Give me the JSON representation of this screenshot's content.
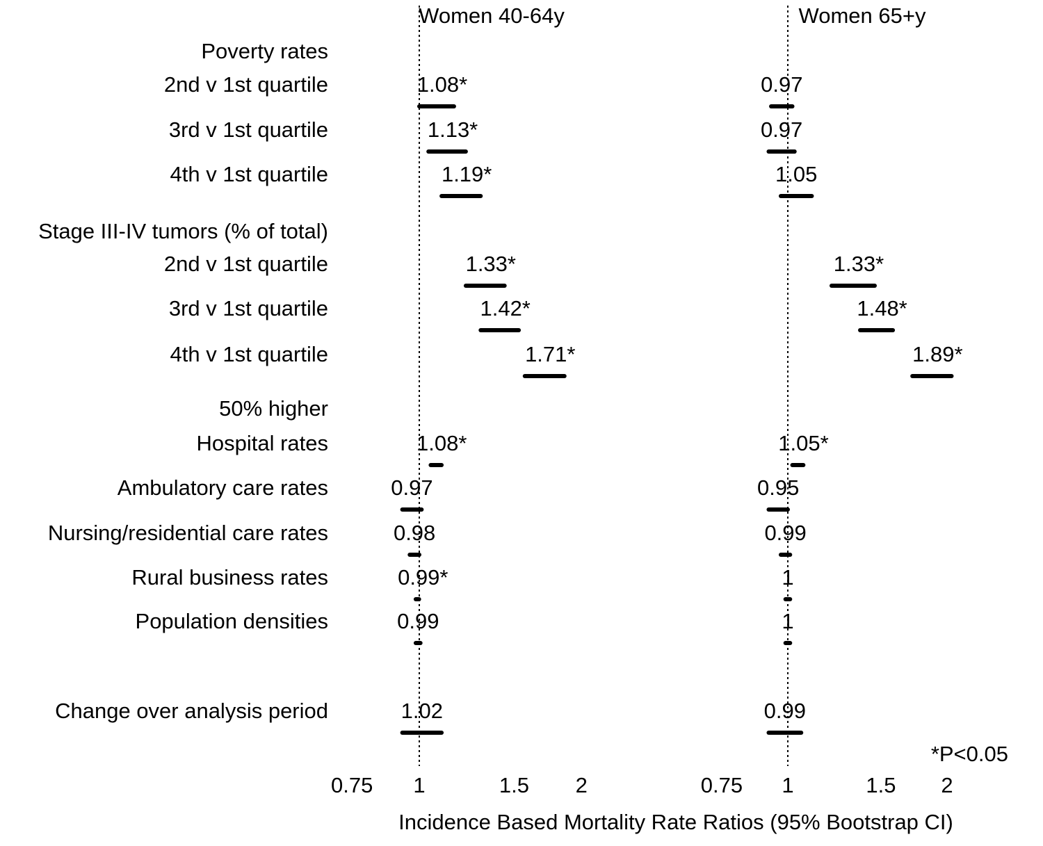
{
  "chart_data": {
    "type": "forest",
    "xlabel": "Incidence Based Mortality Rate Ratios (95% Bootstrap CI)",
    "footnote": "*P<0.05",
    "x_scale": "log",
    "xlim": [
      0.75,
      2
    ],
    "x_ticks": [
      0.75,
      1,
      1.5,
      2
    ],
    "x_tick_labels": [
      "0.75",
      "1",
      "1.5",
      "2"
    ],
    "reference_line": 1,
    "panels": [
      {
        "title": "Women 40-64y"
      },
      {
        "title": "Women 65+y"
      }
    ],
    "groups": [
      {
        "header": "Poverty rates",
        "rows": [
          {
            "label": "2nd v 1st quartile",
            "values": [
              {
                "estimate": 1.08,
                "label": "1.08*",
                "ci": [
                  1.0,
                  1.16
                ]
              },
              {
                "estimate": 0.97,
                "label": "0.97",
                "ci": [
                  0.93,
                  1.02
                ]
              }
            ]
          },
          {
            "label": "3rd v 1st quartile",
            "values": [
              {
                "estimate": 1.13,
                "label": "1.13*",
                "ci": [
                  1.04,
                  1.22
                ]
              },
              {
                "estimate": 0.97,
                "label": "0.97",
                "ci": [
                  0.92,
                  1.03
                ]
              }
            ]
          },
          {
            "label": "4th v 1st quartile",
            "values": [
              {
                "estimate": 1.19,
                "label": "1.19*",
                "ci": [
                  1.1,
                  1.3
                ]
              },
              {
                "estimate": 1.05,
                "label": "1.05",
                "ci": [
                  0.97,
                  1.11
                ]
              }
            ]
          }
        ]
      },
      {
        "header": "Stage III-IV tumors (% of total)",
        "rows": [
          {
            "label": "2nd v 1st quartile",
            "values": [
              {
                "estimate": 1.33,
                "label": "1.33*",
                "ci": [
                  1.22,
                  1.44
                ]
              },
              {
                "estimate": 1.33,
                "label": "1.33*",
                "ci": [
                  1.21,
                  1.46
                ]
              }
            ]
          },
          {
            "label": "3rd v 1st quartile",
            "values": [
              {
                "estimate": 1.42,
                "label": "1.42*",
                "ci": [
                  1.3,
                  1.53
                ]
              },
              {
                "estimate": 1.48,
                "label": "1.48*",
                "ci": [
                  1.37,
                  1.58
                ]
              }
            ]
          },
          {
            "label": "4th v 1st quartile",
            "values": [
              {
                "estimate": 1.71,
                "label": "1.71*",
                "ci": [
                  1.57,
                  1.86
                ]
              },
              {
                "estimate": 1.89,
                "label": "1.89*",
                "ci": [
                  1.72,
                  2.04
                ]
              }
            ]
          }
        ]
      },
      {
        "header": "50% higher",
        "rows": [
          {
            "label": "Hospital rates",
            "values": [
              {
                "estimate": 1.08,
                "label": "1.08*",
                "ci": [
                  1.05,
                  1.1
                ]
              },
              {
                "estimate": 1.05,
                "label": "1.05*",
                "ci": [
                  1.02,
                  1.07
                ]
              }
            ]
          },
          {
            "label": "Ambulatory care rates",
            "values": [
              {
                "estimate": 0.97,
                "label": "0.97",
                "ci": [
                  0.93,
                  1.01
                ]
              },
              {
                "estimate": 0.95,
                "label": "0.95",
                "ci": [
                  0.92,
                  1.0
                ]
              }
            ]
          },
          {
            "label": "Nursing/residential care rates",
            "values": [
              {
                "estimate": 0.98,
                "label": "0.98",
                "ci": [
                  0.96,
                  1.0
                ]
              },
              {
                "estimate": 0.99,
                "label": "0.99",
                "ci": [
                  0.97,
                  1.01
                ]
              }
            ]
          },
          {
            "label": "Rural business rates",
            "values": [
              {
                "estimate": 0.99,
                "label": "0.99*",
                "ci": [
                  0.985,
                  0.999
                ]
              },
              {
                "estimate": 1,
                "label": "1",
                "ci": [
                  0.99,
                  1.01
                ]
              }
            ]
          },
          {
            "label": "Population densities",
            "values": [
              {
                "estimate": 0.99,
                "label": "0.99",
                "ci": [
                  0.985,
                  1.005
                ]
              },
              {
                "estimate": 1,
                "label": "1",
                "ci": [
                  0.99,
                  1.01
                ]
              }
            ]
          }
        ]
      },
      {
        "header": "",
        "rows": [
          {
            "label": "Change over analysis period",
            "values": [
              {
                "estimate": 1.02,
                "label": "1.02",
                "ci": [
                  0.93,
                  1.1
                ]
              },
              {
                "estimate": 0.99,
                "label": "0.99",
                "ci": [
                  0.92,
                  1.06
                ]
              }
            ]
          }
        ]
      }
    ]
  }
}
